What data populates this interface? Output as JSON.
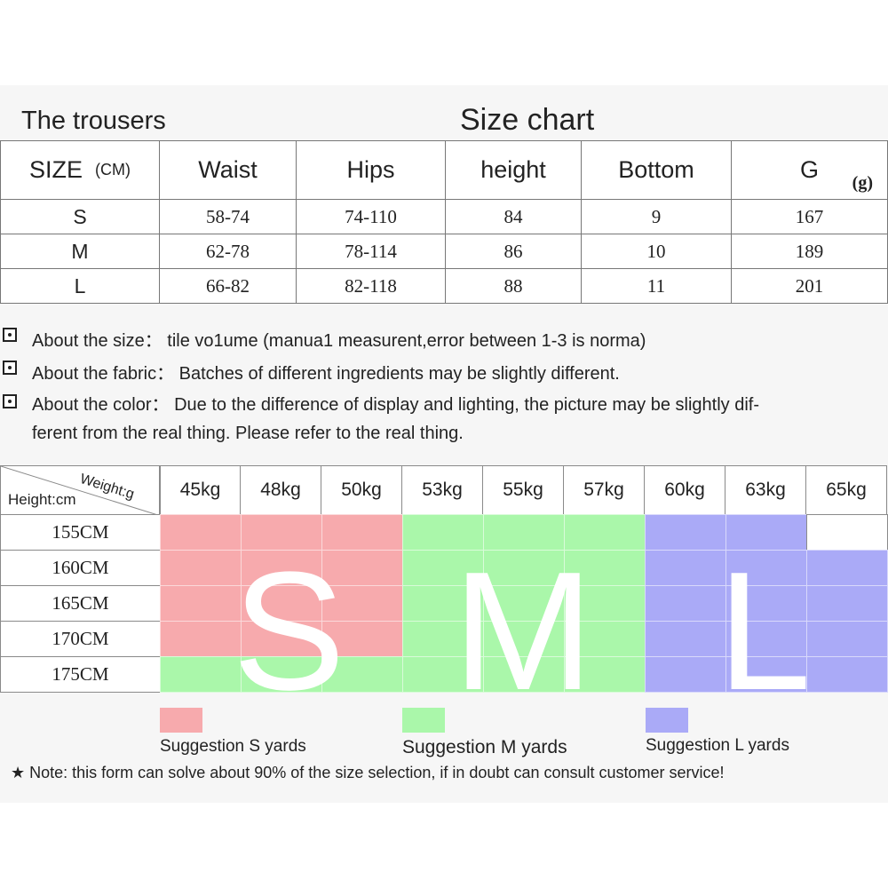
{
  "header": {
    "left_title": "The trousers",
    "center_title": "Size chart"
  },
  "size_table": {
    "headers": {
      "size": "SIZE",
      "size_unit": "(CM)",
      "waist": "Waist",
      "hips": "Hips",
      "height": "height",
      "bottom": "Bottom",
      "g": "G",
      "g_unit": "(g)"
    },
    "rows": [
      {
        "size": "S",
        "waist": "58-74",
        "hips": "74-110",
        "height": "84",
        "bottom": "9",
        "g": "167"
      },
      {
        "size": "M",
        "waist": "62-78",
        "hips": "78-114",
        "height": "86",
        "bottom": "10",
        "g": "189"
      },
      {
        "size": "L",
        "waist": "66-82",
        "hips": "82-118",
        "height": "88",
        "bottom": "11",
        "g": "201"
      }
    ]
  },
  "notes": [
    "About the size： tile vo1ume (manua1 measurent,error between 1-3 is norma)",
    "About the fabric： Batches of different ingredients may be slightly different.",
    "About the color： Due to the difference of display and lighting, the picture may be slightly dif-",
    "ferent from the real thing. Please refer to the real thing."
  ],
  "grid": {
    "corner_weight": "Weight:g",
    "corner_height": "Height:cm",
    "weights": [
      "45kg",
      "48kg",
      "50kg",
      "53kg",
      "55kg",
      "57kg",
      "60kg",
      "63kg",
      "65kg"
    ],
    "heights": [
      "155CM",
      "160CM",
      "165CM",
      "170CM",
      "175CM"
    ],
    "cells": [
      [
        "S",
        "S",
        "S",
        "M",
        "M",
        "M",
        "L",
        "L",
        ""
      ],
      [
        "S",
        "S",
        "S",
        "M",
        "M",
        "M",
        "L",
        "L",
        "L"
      ],
      [
        "S",
        "S",
        "S",
        "M",
        "M",
        "M",
        "L",
        "L",
        "L"
      ],
      [
        "S",
        "S",
        "S",
        "M",
        "M",
        "M",
        "L",
        "L",
        "L"
      ],
      [
        "M",
        "M",
        "M",
        "M",
        "M",
        "M",
        "L",
        "L",
        "L"
      ]
    ],
    "big_letters": [
      "S",
      "M",
      "L"
    ]
  },
  "colors": {
    "S": "#f7aaad",
    "M": "#aaf7aa",
    "L": "#aaaaf7",
    "empty": "#ffffff"
  },
  "legend": [
    {
      "label": "Suggestion S yards",
      "key": "S"
    },
    {
      "label": "Suggestion M yards",
      "key": "M"
    },
    {
      "label": "Suggestion L yards",
      "key": "L"
    }
  ],
  "footer_note": "★ Note: this form can solve about 90% of the size selection, if in doubt can consult customer service!"
}
